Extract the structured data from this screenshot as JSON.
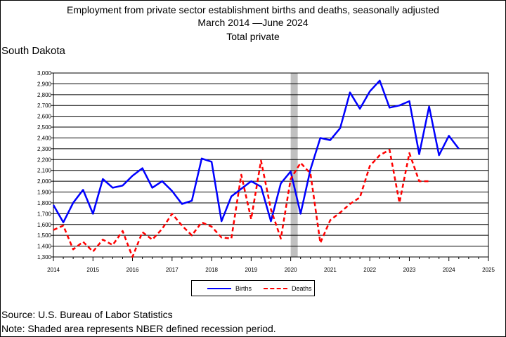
{
  "header": {
    "title": "Employment from private sector establishment births and deaths, seasonally adjusted",
    "subtitle": "March 2014  —June 2024",
    "series_title": "Total private",
    "region": "South Dakota"
  },
  "footer": {
    "source": "Source: U.S. Bureau of Labor Statistics",
    "note": "Note: Shaded area represents NBER defined recession period."
  },
  "colors": {
    "births": "#0000ff",
    "deaths": "#ff0000",
    "recession": "#c0c0c0"
  },
  "chart_data": {
    "type": "line",
    "title": "Employment from private sector establishment births and deaths, seasonally adjusted",
    "xlim": [
      2014,
      2025
    ],
    "ylim": [
      1300,
      3000
    ],
    "x_ticks": [
      "2014",
      "2015",
      "2016",
      "2017",
      "2018",
      "2019",
      "2020",
      "2021",
      "2022",
      "2023",
      "2024",
      "2025"
    ],
    "y_ticks": [
      "1,300",
      "1,400",
      "1,500",
      "1,600",
      "1,700",
      "1,800",
      "1,900",
      "2,000",
      "2,100",
      "2,200",
      "2,300",
      "2,400",
      "2,500",
      "2,600",
      "2,700",
      "2,800",
      "2,900",
      "3,000"
    ],
    "grid": "horizontal",
    "legend": "bottom-center",
    "recession": {
      "start": 2020.0,
      "end": 2020.17
    },
    "series": [
      {
        "name": "Births",
        "style": "solid",
        "x": [
          2014.0,
          2014.25,
          2014.5,
          2014.75,
          2015.0,
          2015.25,
          2015.5,
          2015.75,
          2016.0,
          2016.25,
          2016.5,
          2016.75,
          2017.0,
          2017.25,
          2017.5,
          2017.75,
          2018.0,
          2018.25,
          2018.5,
          2018.75,
          2019.0,
          2019.25,
          2019.5,
          2019.75,
          2020.0,
          2020.25,
          2020.5,
          2020.75,
          2021.0,
          2021.25,
          2021.5,
          2021.75,
          2022.0,
          2022.25,
          2022.5,
          2022.75,
          2023.0,
          2023.25,
          2023.5,
          2023.75,
          2024.0,
          2024.25
        ],
        "values": [
          1780,
          1620,
          1800,
          1920,
          1700,
          2020,
          1940,
          1960,
          2050,
          2120,
          1940,
          2000,
          1910,
          1790,
          1820,
          2210,
          2180,
          1630,
          1860,
          1930,
          2000,
          1950,
          1630,
          1980,
          2090,
          1700,
          2110,
          2400,
          2380,
          2490,
          2820,
          2670,
          2830,
          2930,
          2680,
          2700,
          2740,
          2250,
          2690,
          2240,
          2420,
          2300
        ]
      },
      {
        "name": "Deaths",
        "style": "dashed",
        "x": [
          2014.0,
          2014.25,
          2014.5,
          2014.75,
          2015.0,
          2015.25,
          2015.5,
          2015.75,
          2016.0,
          2016.25,
          2016.5,
          2016.75,
          2017.0,
          2017.25,
          2017.5,
          2017.75,
          2018.0,
          2018.25,
          2018.5,
          2018.75,
          2019.0,
          2019.25,
          2019.5,
          2019.75,
          2020.0,
          2020.25,
          2020.5,
          2020.75,
          2021.0,
          2021.25,
          2021.5,
          2021.75,
          2022.0,
          2022.25,
          2022.5,
          2022.75,
          2023.0,
          2023.25,
          2023.5
        ],
        "values": [
          1550,
          1590,
          1370,
          1440,
          1350,
          1460,
          1410,
          1540,
          1300,
          1530,
          1460,
          1560,
          1700,
          1590,
          1500,
          1620,
          1580,
          1480,
          1470,
          2060,
          1650,
          2190,
          1740,
          1470,
          2020,
          2170,
          2070,
          1430,
          1640,
          1710,
          1790,
          1850,
          2140,
          2240,
          2290,
          1800,
          2260,
          2000,
          2000
        ]
      }
    ]
  }
}
